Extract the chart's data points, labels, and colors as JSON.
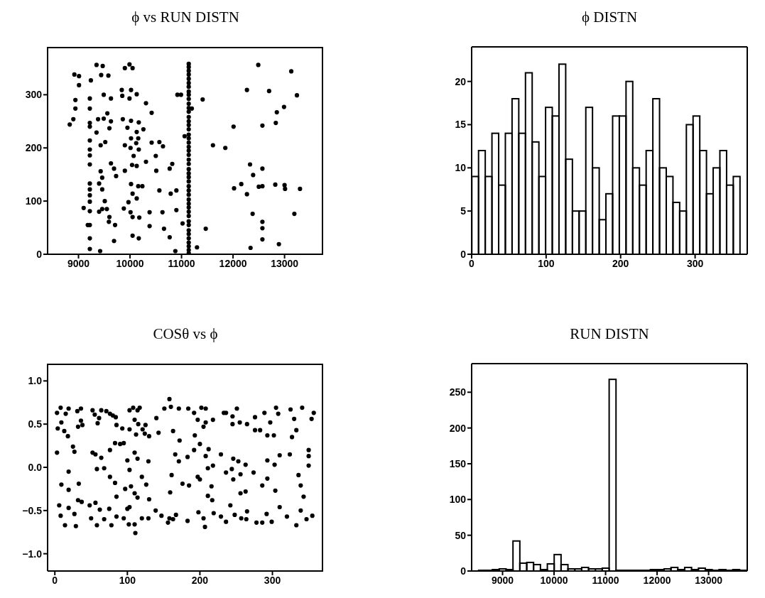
{
  "chart_data": [
    {
      "type": "scatter",
      "title": "ϕ vs RUN DISTN",
      "color": "#000000",
      "marker": "circle",
      "xlim": [
        8400,
        13750
      ],
      "ylim": [
        0,
        390
      ],
      "xticks": [
        9000,
        10000,
        11000,
        12000,
        13000
      ],
      "yticks": [
        0,
        100,
        200,
        300
      ],
      "x": [
        8830,
        8900,
        8920,
        9010,
        9010,
        8940,
        8940,
        9350,
        9470,
        9440,
        9580,
        9240,
        9490,
        9630,
        9560,
        9380,
        9490,
        9630,
        9600,
        9350,
        9430,
        9520,
        9630,
        9690,
        9430,
        9460,
        9730,
        9400,
        9460,
        9510,
        9100,
        9400,
        9460,
        9550,
        9600,
        9590,
        9710,
        9180,
        9690,
        9420,
        9840,
        10020,
        9990,
        10050,
        9900,
        9850,
        9990,
        10130,
        10310,
        10420,
        9860,
        10020,
        10170,
        9950,
        10260,
        10130,
        10020,
        10160,
        9900,
        10010,
        10170,
        10120,
        10070,
        10310,
        10040,
        10130,
        9900,
        10420,
        10570,
        10640,
        10500,
        10510,
        10820,
        10770,
        10020,
        10160,
        10240,
        10050,
        10130,
        9970,
        9880,
        10010,
        10050,
        10180,
        10380,
        10570,
        10630,
        10790,
        10900,
        10900,
        10660,
        10380,
        11020,
        10050,
        10170,
        10770,
        10880,
        10920,
        10990,
        11060,
        11200,
        11300,
        11410,
        11470,
        11610,
        11850,
        12010,
        12020,
        12160,
        12270,
        12330,
        12390,
        12270,
        12380,
        12490,
        12500,
        12570,
        12570,
        12570,
        12570,
        12570,
        12570,
        12340,
        12700,
        12830,
        12850,
        12990,
        13240,
        13130,
        12820,
        13000,
        13010,
        13300,
        13190,
        12890,
        9220,
        9220,
        9220,
        9220,
        9220,
        9220,
        9220,
        9220,
        9220,
        9220,
        9220,
        9220,
        9220,
        9220,
        9220,
        9220,
        11140,
        11140,
        11140,
        11140,
        11140,
        11140,
        11140,
        11140,
        11140,
        11140,
        11140,
        11140,
        11140,
        11140,
        11140,
        11140,
        11140,
        11140,
        11140,
        11140,
        11140,
        11140,
        11140,
        11140,
        11140,
        11140,
        11140,
        11140,
        11140,
        11140,
        11140,
        11140,
        11140,
        11140,
        11140,
        11140,
        11140,
        11140,
        11140,
        11140,
        11140,
        11140,
        11140,
        11140,
        11140,
        11140
      ],
      "values": [
        244,
        254,
        338,
        335,
        318,
        290,
        274,
        356,
        354,
        337,
        336,
        327,
        300,
        293,
        265,
        254,
        255,
        250,
        237,
        229,
        205,
        211,
        171,
        161,
        156,
        144,
        147,
        133,
        122,
        100,
        87,
        80,
        85,
        85,
        70,
        61,
        55,
        55,
        25,
        6,
        309,
        309,
        357,
        350,
        350,
        298,
        293,
        301,
        284,
        266,
        254,
        251,
        248,
        238,
        235,
        230,
        218,
        218,
        205,
        200,
        197,
        209,
        185,
        174,
        168,
        166,
        157,
        210,
        211,
        203,
        185,
        157,
        170,
        161,
        132,
        128,
        128,
        114,
        105,
        98,
        86,
        79,
        70,
        69,
        79,
        120,
        79,
        114,
        120,
        83,
        48,
        53,
        58,
        35,
        30,
        32,
        6,
        300,
        300,
        222,
        274,
        13,
        291,
        48,
        205,
        200,
        240,
        124,
        132,
        309,
        169,
        149,
        113,
        76,
        356,
        127,
        242,
        161,
        128,
        61,
        49,
        28,
        12,
        307,
        247,
        267,
        277,
        299,
        344,
        131,
        130,
        123,
        123,
        76,
        19,
        293,
        274,
        247,
        240,
        214,
        197,
        186,
        169,
        133,
        122,
        111,
        99,
        81,
        55,
        30,
        10,
        358,
        352,
        345,
        338,
        330,
        322,
        315,
        306,
        300,
        292,
        283,
        275,
        268,
        258,
        250,
        243,
        235,
        225,
        218,
        210,
        202,
        195,
        187,
        178,
        170,
        160,
        152,
        145,
        137,
        128,
        120,
        112,
        103,
        95,
        88,
        80,
        72,
        62,
        55,
        45,
        38,
        30,
        22,
        15,
        8,
        2
      ]
    },
    {
      "type": "histogram",
      "title": "ϕ DISTN",
      "color": "#000000",
      "xlim": [
        0,
        370
      ],
      "ylim": [
        0,
        24
      ],
      "xticks": [
        0,
        100,
        200,
        300
      ],
      "yticks": [
        0,
        5,
        10,
        15,
        20
      ],
      "bins": [
        0,
        9,
        18,
        27,
        36,
        45,
        54,
        63,
        72,
        81,
        90,
        99,
        108,
        117,
        126,
        135,
        144,
        153,
        162,
        171,
        180,
        189,
        198,
        207,
        216,
        225,
        234,
        243,
        252,
        261,
        270,
        279,
        288,
        297,
        306,
        315,
        324,
        333,
        342,
        351,
        360
      ],
      "values": [
        9,
        12,
        9,
        14,
        8,
        14,
        18,
        14,
        21,
        13,
        9,
        17,
        16,
        22,
        11,
        5,
        5,
        17,
        10,
        4,
        7,
        16,
        16,
        20,
        10,
        8,
        12,
        18,
        10,
        9,
        6,
        5,
        15,
        16,
        12,
        7,
        10,
        12,
        8,
        9
      ]
    },
    {
      "type": "scatter",
      "title": "COSθ vs ϕ",
      "color": "#000000",
      "marker": "circle",
      "xlim": [
        -10,
        370
      ],
      "ylim": [
        -1.2,
        1.2
      ],
      "xticks": [
        0,
        100,
        200,
        300
      ],
      "yticks": [
        {
          "value": -1,
          "label": "−1.0"
        },
        {
          "value": -0.5,
          "label": "−0.5"
        },
        {
          "value": 0,
          "label": "0.0"
        },
        {
          "value": 0.5,
          "label": "0.5"
        },
        {
          "value": 1,
          "label": "1.0"
        }
      ],
      "x": [
        3,
        8,
        15,
        19,
        9,
        4,
        13,
        18,
        31,
        36,
        36,
        32,
        38,
        52,
        55,
        59,
        64,
        61,
        71,
        76,
        80,
        84,
        85,
        93,
        103,
        108,
        114,
        117,
        110,
        115,
        121,
        125,
        124,
        130,
        112,
        103,
        140,
        143,
        151,
        160,
        171,
        163,
        184,
        192,
        202,
        208,
        197,
        208,
        218,
        205,
        193,
        233,
        236,
        245,
        251,
        245,
        255,
        265,
        276,
        276,
        283,
        289,
        297,
        305,
        308,
        293,
        302,
        325,
        330,
        341,
        333,
        327,
        354,
        357,
        158,
        3,
        19,
        25,
        27,
        9,
        19,
        33,
        52,
        56,
        64,
        58,
        68,
        76,
        83,
        90,
        76,
        83,
        85,
        95,
        100,
        103,
        110,
        114,
        120,
        126,
        129,
        97,
        105,
        110,
        114,
        130,
        159,
        161,
        166,
        171,
        172,
        176,
        185,
        183,
        192,
        200,
        212,
        208,
        197,
        200,
        211,
        218,
        216,
        217,
        211,
        229,
        236,
        244,
        246,
        253,
        246,
        256,
        263,
        263,
        256,
        274,
        293,
        303,
        293,
        286,
        304,
        310,
        324,
        336,
        339,
        343,
        350,
        350,
        350,
        6,
        8,
        14,
        19,
        27,
        29,
        32,
        37,
        48,
        50,
        58,
        56,
        62,
        68,
        78,
        75,
        85,
        95,
        100,
        103,
        110,
        111,
        102,
        120,
        129,
        139,
        147,
        156,
        158,
        163,
        167,
        183,
        198,
        207,
        205,
        219,
        229,
        236,
        242,
        248,
        257,
        264,
        265,
        278,
        286,
        292,
        299,
        310,
        320,
        333,
        339,
        347,
        355
      ],
      "values": [
        0.63,
        0.69,
        0.62,
        0.68,
        0.52,
        0.45,
        0.42,
        0.36,
        0.65,
        0.68,
        0.54,
        0.47,
        0.49,
        0.66,
        0.61,
        0.51,
        0.66,
        0.57,
        0.65,
        0.62,
        0.6,
        0.58,
        0.49,
        0.45,
        0.66,
        0.69,
        0.66,
        0.69,
        0.55,
        0.5,
        0.44,
        0.49,
        0.39,
        0.36,
        0.38,
        0.44,
        0.57,
        0.4,
        0.68,
        0.7,
        0.68,
        0.42,
        0.68,
        0.63,
        0.69,
        0.68,
        0.55,
        0.52,
        0.55,
        0.47,
        0.37,
        0.63,
        0.63,
        0.59,
        0.68,
        0.5,
        0.52,
        0.5,
        0.58,
        0.43,
        0.43,
        0.63,
        0.52,
        0.69,
        0.62,
        0.37,
        0.37,
        0.67,
        0.56,
        0.69,
        0.43,
        0.35,
        0.56,
        0.63,
        0.79,
        0.17,
        -0.05,
        0.24,
        0.18,
        -0.2,
        -0.26,
        -0.19,
        0.17,
        0.15,
        0.11,
        -0.02,
        -0.01,
        0.2,
        0.28,
        0.27,
        -0.11,
        -0.18,
        -0.34,
        0.28,
        0.08,
        -0.03,
        0.17,
        0.1,
        -0.11,
        -0.2,
        0.07,
        -0.25,
        -0.22,
        -0.3,
        -0.35,
        -0.37,
        -0.29,
        -0.09,
        0.15,
        0.07,
        0.31,
        -0.19,
        -0.21,
        0.12,
        0.2,
        0.27,
        0.21,
        0.13,
        -0.11,
        -0.14,
        -0.01,
        0.02,
        -0.22,
        -0.38,
        -0.33,
        0.15,
        -0.06,
        -0.02,
        0.1,
        0.07,
        -0.14,
        -0.08,
        0.03,
        -0.28,
        -0.3,
        -0.06,
        0.08,
        0.03,
        -0.13,
        -0.21,
        -0.27,
        0.14,
        0.15,
        -0.09,
        -0.21,
        -0.34,
        0.2,
        0.13,
        0.02,
        -0.44,
        -0.56,
        -0.67,
        -0.47,
        -0.54,
        -0.68,
        -0.38,
        -0.4,
        -0.44,
        -0.59,
        -0.67,
        -0.41,
        -0.49,
        -0.6,
        -0.67,
        -0.48,
        -0.57,
        -0.59,
        -0.48,
        -0.46,
        -0.66,
        -0.76,
        -0.66,
        -0.59,
        -0.59,
        -0.5,
        -0.56,
        -0.64,
        -0.59,
        -0.6,
        -0.55,
        -0.62,
        -0.52,
        -0.69,
        -0.59,
        -0.53,
        -0.57,
        -0.63,
        -0.44,
        -0.55,
        -0.59,
        -0.6,
        -0.51,
        -0.64,
        -0.64,
        -0.54,
        -0.63,
        -0.46,
        -0.57,
        -0.67,
        -0.5,
        -0.6,
        -0.56
      ]
    },
    {
      "type": "histogram",
      "title": "RUN DISTN",
      "color": "#000000",
      "xlim": [
        8400,
        13750
      ],
      "ylim": [
        0,
        290
      ],
      "xticks": [
        9000,
        10000,
        11000,
        12000,
        13000
      ],
      "yticks": [
        0,
        50,
        100,
        150,
        200,
        250
      ],
      "bins": [
        8400,
        8533,
        8667,
        8800,
        8933,
        9067,
        9200,
        9333,
        9467,
        9600,
        9733,
        9867,
        10000,
        10133,
        10267,
        10400,
        10533,
        10667,
        10800,
        10933,
        11067,
        11200,
        11333,
        11467,
        11600,
        11733,
        11867,
        12000,
        12133,
        12267,
        12400,
        12533,
        12667,
        12800,
        12933,
        13067,
        13200,
        13333,
        13467,
        13600,
        13733
      ],
      "values": [
        0,
        1,
        1,
        2,
        3,
        2,
        42,
        11,
        12,
        9,
        2,
        10,
        23,
        9,
        3,
        3,
        5,
        3,
        3,
        4,
        268,
        1,
        1,
        1,
        1,
        1,
        2,
        2,
        3,
        5,
        2,
        5,
        2,
        4,
        2,
        1,
        2,
        1,
        2,
        1
      ]
    }
  ]
}
